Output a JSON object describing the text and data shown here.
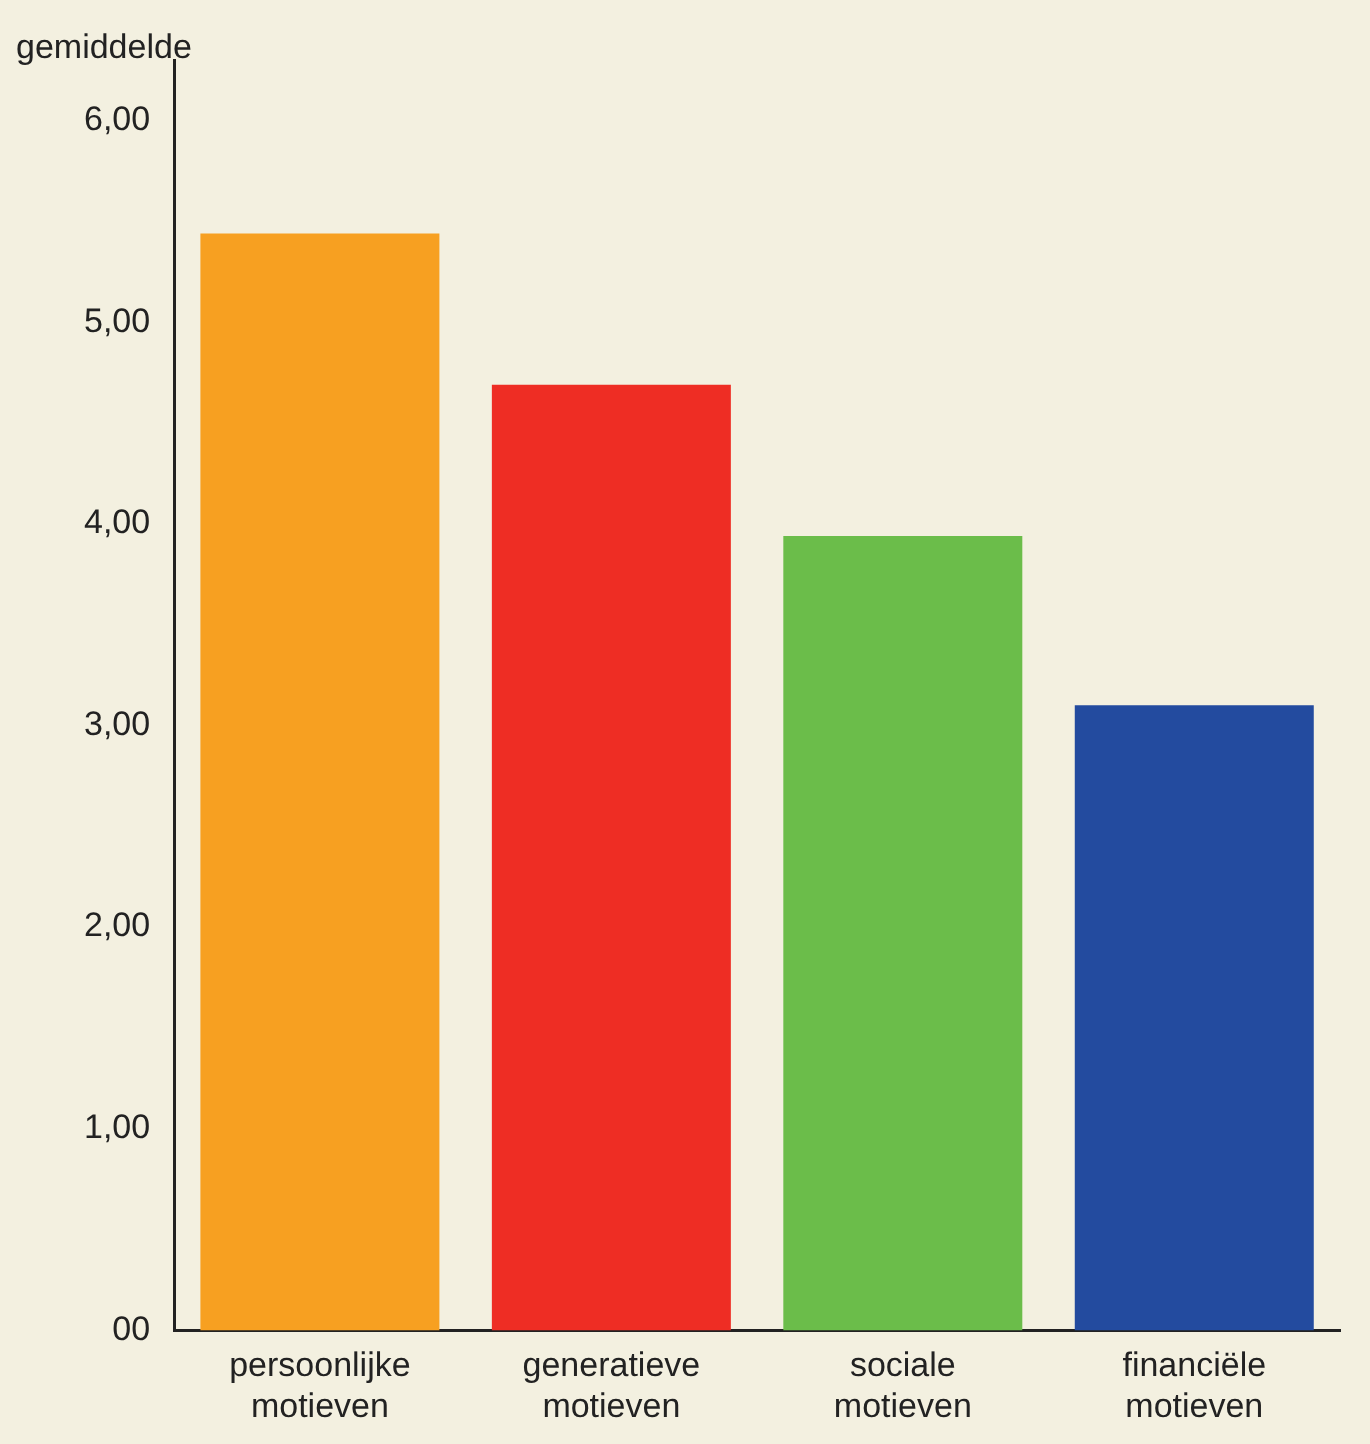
{
  "chart_data": {
    "type": "bar",
    "ylabel": "gemiddelde",
    "categories": [
      "persoonlijke motieven",
      "generatieve motieven",
      "sociale motieven",
      "financiële motieven"
    ],
    "values": [
      5.44,
      4.69,
      3.94,
      3.1
    ],
    "colors": [
      "#f7a021",
      "#ee2d24",
      "#6bbd4a",
      "#234b9f"
    ],
    "ylim": [
      0,
      6.3
    ],
    "yticks": [
      {
        "value": 0,
        "label": "00"
      },
      {
        "value": 1,
        "label": "1,00"
      },
      {
        "value": 2,
        "label": "2,00"
      },
      {
        "value": 3,
        "label": "3,00"
      },
      {
        "value": 4,
        "label": "4,00"
      },
      {
        "value": 5,
        "label": "5,00"
      },
      {
        "value": 6,
        "label": "6,00"
      }
    ],
    "grid": false,
    "legend": false
  }
}
